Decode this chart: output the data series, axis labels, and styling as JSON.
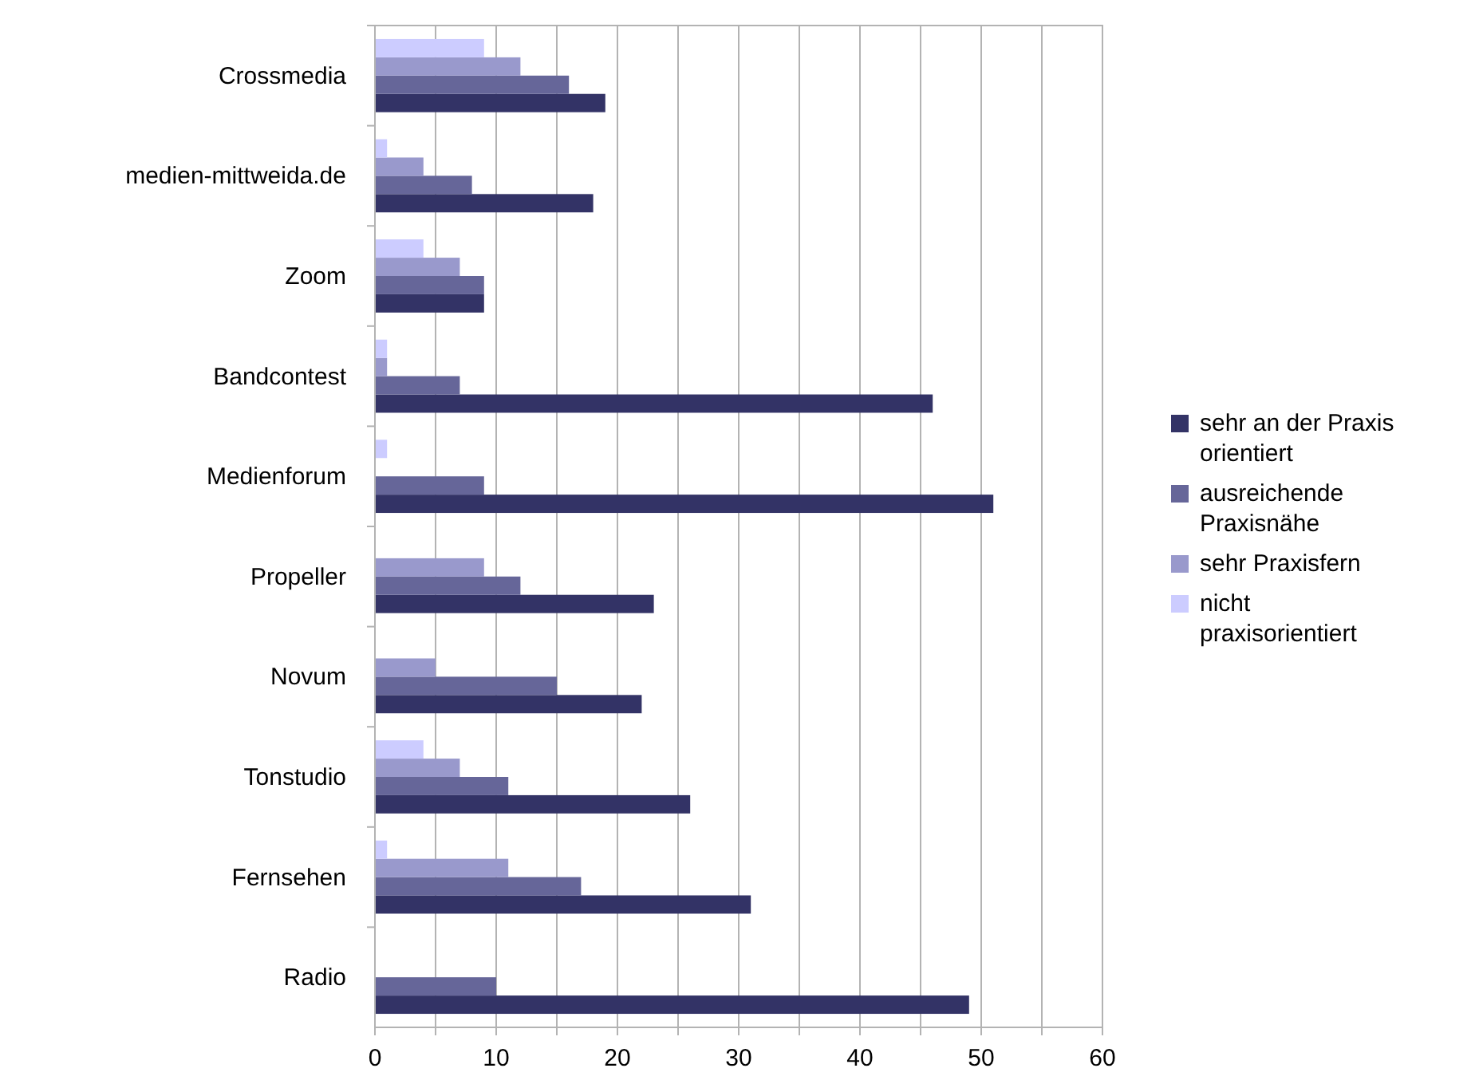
{
  "chart_data": {
    "type": "bar",
    "orientation": "horizontal",
    "categories": [
      "Crossmedia",
      "medien-mittweida.de",
      "Zoom",
      "Bandcontest",
      "Medienforum",
      "Propeller",
      "Novum",
      "Tonstudio",
      "Fernsehen",
      "Radio"
    ],
    "series": [
      {
        "name": "sehr an der Praxis orientiert",
        "color": "#333366",
        "values": [
          19,
          18,
          9,
          46,
          51,
          23,
          22,
          26,
          31,
          49
        ]
      },
      {
        "name": "ausreichende Praxisnähe",
        "color": "#666699",
        "values": [
          16,
          8,
          9,
          7,
          9,
          12,
          15,
          11,
          17,
          10
        ]
      },
      {
        "name": "sehr Praxisfern",
        "color": "#9999cc",
        "values": [
          12,
          4,
          7,
          1,
          0,
          9,
          5,
          7,
          11,
          0
        ]
      },
      {
        "name": "nicht praxisorientiert",
        "color": "#ccccff",
        "values": [
          9,
          1,
          4,
          1,
          1,
          0,
          0,
          4,
          1,
          0
        ]
      }
    ],
    "xlim": [
      0,
      60
    ],
    "xticks": [
      0,
      {
        "value": 5,
        "label": null
      },
      10,
      {
        "value": 15,
        "label": null
      },
      20,
      {
        "value": 25,
        "label": null
      },
      30,
      {
        "value": 35,
        "label": null
      },
      40,
      {
        "value": 45,
        "label": null
      },
      50,
      {
        "value": 55,
        "label": null
      },
      60
    ],
    "grid": "x",
    "legend": "right"
  }
}
